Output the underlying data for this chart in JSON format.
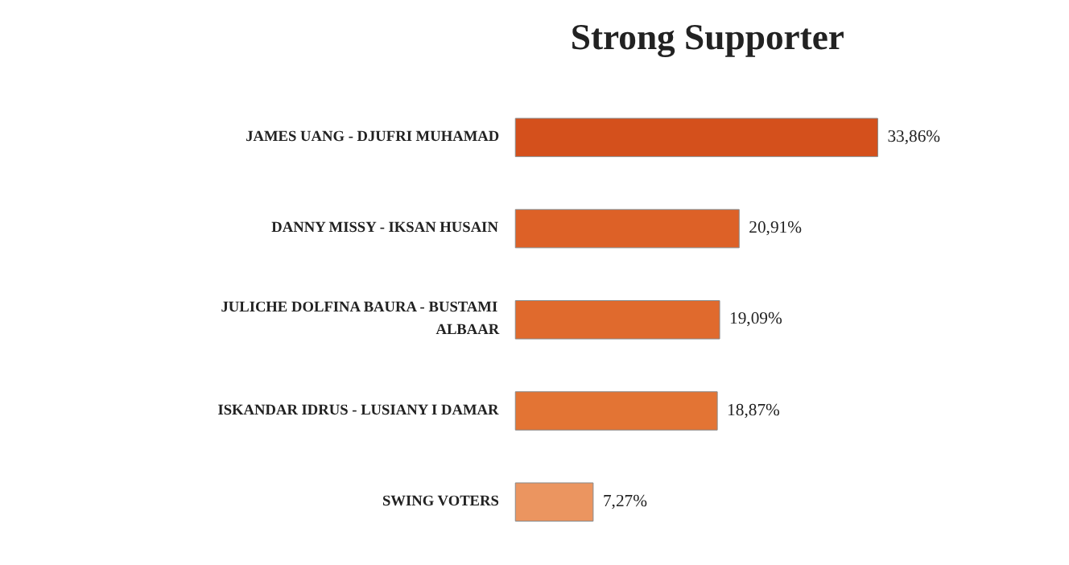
{
  "chart_data": {
    "type": "bar",
    "orientation": "horizontal",
    "title": "Strong Supporter",
    "categories": [
      "JAMES UANG - DJUFRI MUHAMAD",
      "DANNY MISSY - IKSAN HUSAIN",
      "JULICHE DOLFINA BAURA - BUSTAMI ALBAAR",
      "ISKANDAR IDRUS - LUSIANY I DAMAR",
      "SWING VOTERS"
    ],
    "values": [
      33.86,
      20.91,
      19.09,
      18.87,
      7.27
    ],
    "colors": [
      "#d4501c",
      "#dd6127",
      "#e06a2d",
      "#e37434",
      "#eb9560"
    ],
    "value_labels": [
      "33,86%",
      "20,91%",
      "19,09%",
      "18,87%",
      "7,27%"
    ],
    "grid": false
  }
}
